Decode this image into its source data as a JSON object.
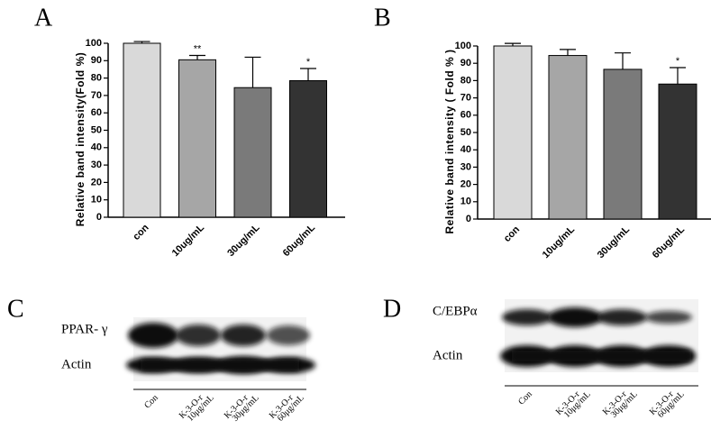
{
  "chart_data": [
    {
      "type": "bar",
      "panel": "A",
      "y_label": "Relative band intensity(Fold %)",
      "categories": [
        "con",
        "10ug/mL",
        "30ug/mL",
        "60ug/mL"
      ],
      "values": [
        100,
        90.5,
        74.5,
        78.5
      ],
      "errors": [
        1,
        2.5,
        17.5,
        7
      ],
      "significance": [
        null,
        "**",
        null,
        "*"
      ],
      "colors": [
        "#d9d9d9",
        "#a6a6a6",
        "#7a7a7a",
        "#333333"
      ],
      "ylim": [
        0,
        100
      ],
      "yticks": [
        0,
        10,
        20,
        30,
        40,
        50,
        60,
        70,
        80,
        90,
        100
      ]
    },
    {
      "type": "bar",
      "panel": "B",
      "y_label": "Relative band intensity ( Fold % )",
      "categories": [
        "con",
        "10ug/mL",
        "30ug/mL",
        "60ug/mL"
      ],
      "values": [
        100,
        94.5,
        86.5,
        78
      ],
      "errors": [
        1.5,
        3.5,
        9.5,
        9.5
      ],
      "significance": [
        null,
        null,
        null,
        "*"
      ],
      "colors": [
        "#d9d9d9",
        "#a6a6a6",
        "#7a7a7a",
        "#333333"
      ],
      "ylim": [
        0,
        100
      ],
      "yticks": [
        0,
        10,
        20,
        30,
        40,
        50,
        60,
        70,
        80,
        90,
        100
      ]
    }
  ],
  "blots": [
    {
      "panel": "C",
      "target": "PPAR- γ",
      "control": "Actin",
      "lanes": [
        [
          "Con"
        ],
        [
          "K-3-O-r",
          "10μg/mL"
        ],
        [
          "K-3-O-r",
          "30μg/mL"
        ],
        [
          "K-3-O-r",
          "60μg/mL"
        ]
      ]
    },
    {
      "panel": "D",
      "target": "C/EBPα",
      "control": "Actin",
      "lanes": [
        [
          "Con"
        ],
        [
          "K-3-O-r",
          "10μg/mL"
        ],
        [
          "K-3-O-r",
          "30μg/mL"
        ],
        [
          "K-3-O-r",
          "60μg/mL"
        ]
      ]
    }
  ]
}
